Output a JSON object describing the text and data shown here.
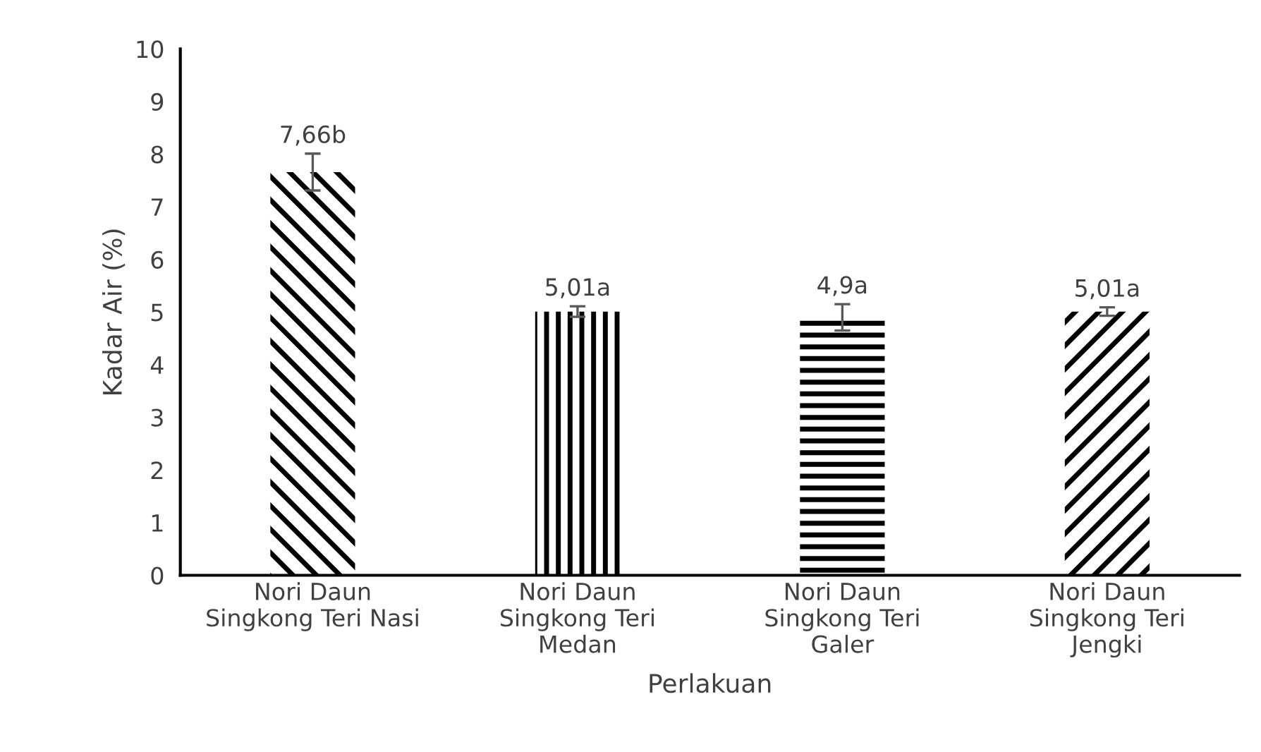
{
  "chart_data": {
    "type": "bar",
    "xlabel": "Perlakuan",
    "ylabel": "Kadar Air (%)",
    "categories": [
      "Nori Daun\nSingkong Teri Nasi",
      "Nori Daun\nSingkong Teri\nMedan",
      "Nori Daun\nSingkong Teri\nGaler",
      "Nori Daun\nSingkong Teri\nJengki"
    ],
    "values": [
      7.66,
      5.01,
      4.9,
      5.01
    ],
    "errors": [
      0.35,
      0.1,
      0.25,
      0.08
    ],
    "value_labels": [
      "7,66b",
      "5,01a",
      "4,9a",
      "5,01a"
    ],
    "colors": [
      "#000000",
      "#000000",
      "#000000",
      "#000000"
    ],
    "ylim": [
      0,
      10
    ],
    "yticks": [
      0,
      1,
      2,
      3,
      4,
      5,
      6,
      7,
      8,
      9,
      10
    ],
    "grid": false,
    "legend": false
  }
}
